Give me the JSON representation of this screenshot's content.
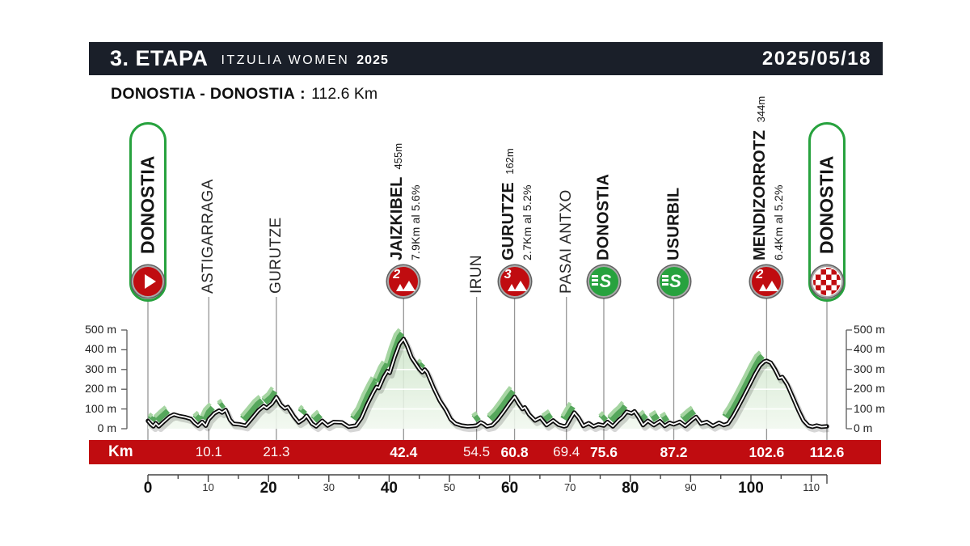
{
  "header": {
    "stage_number": "3. ETAPA",
    "race_name": "ITZULIA WOMEN",
    "race_year": "2025",
    "date": "2025/05/18"
  },
  "subheader": {
    "route": "DONOSTIA - DONOSTIA",
    "colon": ":",
    "distance": "112.6 Km"
  },
  "colors": {
    "header_bg": "#1a1f29",
    "accent_red": "#c00c10",
    "accent_green": "#27a23e",
    "profile_fill_top": "#cde5c9",
    "profile_fill_bottom": "#f1f8ef",
    "ribbon_dark": "#56a75c",
    "ribbon_light": "#a6d5a2",
    "line_black": "#0d0d0d",
    "grid_white": "#ffffff",
    "marker_gray": "#969696"
  },
  "y_axis": {
    "unit": "m",
    "labels": [
      "500 m",
      "400 m",
      "300 m",
      "200 m",
      "100 m",
      "0 m"
    ],
    "values": [
      500,
      400,
      300,
      200,
      100,
      0
    ]
  },
  "km_bar": {
    "label": "Km"
  },
  "ruler": {
    "major_labels": [
      0,
      10,
      20,
      30,
      40,
      50,
      60,
      70,
      80,
      90,
      100,
      110
    ],
    "bold_every": 20
  },
  "waypoints": [
    {
      "name": "DONOSTIA",
      "km": 0,
      "type": "start",
      "icon": "play-icon",
      "bold": true,
      "km_label": ""
    },
    {
      "name": "ASTIGARRAGA",
      "km": 10.1,
      "type": "town",
      "bold": false,
      "km_label": "10.1"
    },
    {
      "name": "GURUTZE",
      "km": 21.3,
      "type": "town",
      "bold": false,
      "km_label": "21.3"
    },
    {
      "name": "JAIZKIBEL",
      "km": 42.4,
      "type": "climb",
      "icon": "climb-cat2-icon",
      "category": "2",
      "altitude": "455m",
      "detail": "7.9Km al 5.6%",
      "bold": true,
      "km_label": "42.4"
    },
    {
      "name": "IRUN",
      "km": 54.5,
      "type": "town",
      "bold": false,
      "km_label": "54.5"
    },
    {
      "name": "GURUTZE",
      "km": 60.8,
      "type": "climb",
      "icon": "climb-cat3-icon",
      "category": "3",
      "altitude": "162m",
      "detail": "2.7Km al 5.2%",
      "bold": true,
      "km_label": "60.8"
    },
    {
      "name": "PASAI ANTXO",
      "km": 69.4,
      "type": "town",
      "bold": false,
      "km_label": "69.4"
    },
    {
      "name": "DONOSTIA",
      "km": 75.6,
      "type": "sprint",
      "icon": "sprint-icon",
      "bold": true,
      "km_label": "75.6"
    },
    {
      "name": "USURBIL",
      "km": 87.2,
      "type": "sprint",
      "icon": "sprint-icon",
      "bold": true,
      "km_label": "87.2"
    },
    {
      "name": "MENDIZORROTZ",
      "km": 102.6,
      "type": "climb",
      "icon": "climb-cat2-icon",
      "category": "2",
      "altitude": "344m",
      "detail": "6.4Km al 5.2%",
      "bold": true,
      "km_label": "102.6"
    },
    {
      "name": "DONOSTIA",
      "km": 112.6,
      "type": "finish",
      "icon": "finish-flag-icon",
      "bold": true,
      "km_label": "112.6"
    }
  ],
  "chart_data": {
    "type": "area",
    "title": "Stage elevation profile",
    "xlabel": "Km",
    "ylabel": "m",
    "xlim": [
      0,
      112.6
    ],
    "ylim": [
      0,
      500
    ],
    "y_ticks": [
      0,
      100,
      200,
      300,
      400,
      500
    ],
    "x_ticks": [
      0,
      10,
      20,
      30,
      40,
      50,
      60,
      70,
      80,
      90,
      100,
      110
    ],
    "profile": [
      [
        0,
        40
      ],
      [
        0.5,
        22
      ],
      [
        0.9,
        12
      ],
      [
        1.3,
        28
      ],
      [
        1.8,
        12
      ],
      [
        2.6,
        35
      ],
      [
        3.6,
        62
      ],
      [
        4.3,
        72
      ],
      [
        5.2,
        64
      ],
      [
        6.2,
        58
      ],
      [
        7.1,
        50
      ],
      [
        7.7,
        30
      ],
      [
        8.3,
        15
      ],
      [
        9.0,
        35
      ],
      [
        9.6,
        15
      ],
      [
        10.1,
        48
      ],
      [
        11.0,
        78
      ],
      [
        11.8,
        92
      ],
      [
        12.3,
        82
      ],
      [
        12.9,
        95
      ],
      [
        13.6,
        45
      ],
      [
        14.2,
        25
      ],
      [
        15.2,
        22
      ],
      [
        16.2,
        15
      ],
      [
        17.3,
        55
      ],
      [
        18.3,
        92
      ],
      [
        19.2,
        115
      ],
      [
        19.7,
        104
      ],
      [
        20.6,
        128
      ],
      [
        21.3,
        160
      ],
      [
        22.0,
        122
      ],
      [
        22.7,
        103
      ],
      [
        23.2,
        110
      ],
      [
        24.2,
        62
      ],
      [
        25.0,
        32
      ],
      [
        25.8,
        48
      ],
      [
        26.3,
        66
      ],
      [
        27.2,
        26
      ],
      [
        27.9,
        12
      ],
      [
        28.9,
        40
      ],
      [
        29.8,
        16
      ],
      [
        30.8,
        34
      ],
      [
        32.2,
        32
      ],
      [
        33.3,
        10
      ],
      [
        34.5,
        16
      ],
      [
        35.4,
        55
      ],
      [
        36.4,
        125
      ],
      [
        37.3,
        180
      ],
      [
        37.9,
        212
      ],
      [
        38.3,
        206
      ],
      [
        39.1,
        262
      ],
      [
        39.7,
        292
      ],
      [
        40.1,
        283
      ],
      [
        40.9,
        362
      ],
      [
        41.7,
        428
      ],
      [
        42.4,
        455
      ],
      [
        43.0,
        418
      ],
      [
        43.7,
        362
      ],
      [
        44.4,
        330
      ],
      [
        45.0,
        302
      ],
      [
        45.5,
        286
      ],
      [
        45.9,
        300
      ],
      [
        46.3,
        284
      ],
      [
        47.4,
        205
      ],
      [
        48.4,
        142
      ],
      [
        49.4,
        96
      ],
      [
        50.2,
        48
      ],
      [
        51.0,
        26
      ],
      [
        52.0,
        16
      ],
      [
        53.0,
        12
      ],
      [
        54.0,
        14
      ],
      [
        54.5,
        16
      ],
      [
        55.2,
        32
      ],
      [
        55.7,
        24
      ],
      [
        56.2,
        12
      ],
      [
        57.1,
        18
      ],
      [
        58.0,
        46
      ],
      [
        59.0,
        86
      ],
      [
        60.0,
        130
      ],
      [
        60.8,
        162
      ],
      [
        61.5,
        126
      ],
      [
        62.1,
        100
      ],
      [
        62.5,
        108
      ],
      [
        63.2,
        72
      ],
      [
        64.2,
        42
      ],
      [
        65.1,
        56
      ],
      [
        66.1,
        18
      ],
      [
        67.2,
        42
      ],
      [
        68.1,
        20
      ],
      [
        69.0,
        12
      ],
      [
        69.4,
        15
      ],
      [
        70.1,
        52
      ],
      [
        70.7,
        82
      ],
      [
        71.4,
        56
      ],
      [
        72.2,
        14
      ],
      [
        73.1,
        28
      ],
      [
        73.9,
        12
      ],
      [
        74.7,
        22
      ],
      [
        75.6,
        16
      ],
      [
        76.2,
        34
      ],
      [
        77.1,
        12
      ],
      [
        78.1,
        44
      ],
      [
        78.7,
        60
      ],
      [
        79.4,
        86
      ],
      [
        80.2,
        78
      ],
      [
        80.7,
        88
      ],
      [
        81.4,
        56
      ],
      [
        82.1,
        18
      ],
      [
        82.9,
        40
      ],
      [
        83.9,
        18
      ],
      [
        84.9,
        38
      ],
      [
        85.7,
        14
      ],
      [
        86.5,
        30
      ],
      [
        87.2,
        22
      ],
      [
        88.2,
        35
      ],
      [
        89.1,
        14
      ],
      [
        90.2,
        44
      ],
      [
        90.9,
        60
      ],
      [
        91.7,
        26
      ],
      [
        92.7,
        34
      ],
      [
        93.7,
        14
      ],
      [
        94.7,
        30
      ],
      [
        95.5,
        18
      ],
      [
        96.2,
        26
      ],
      [
        97.0,
        62
      ],
      [
        97.8,
        106
      ],
      [
        98.7,
        158
      ],
      [
        99.7,
        218
      ],
      [
        100.7,
        278
      ],
      [
        101.5,
        320
      ],
      [
        102.2,
        340
      ],
      [
        102.6,
        344
      ],
      [
        103.3,
        334
      ],
      [
        104.0,
        300
      ],
      [
        104.7,
        256
      ],
      [
        105.2,
        262
      ],
      [
        106.0,
        224
      ],
      [
        106.9,
        162
      ],
      [
        107.9,
        92
      ],
      [
        108.7,
        42
      ],
      [
        109.5,
        16
      ],
      [
        110.2,
        10
      ],
      [
        110.9,
        16
      ],
      [
        111.7,
        10
      ],
      [
        112.6,
        12
      ]
    ]
  }
}
